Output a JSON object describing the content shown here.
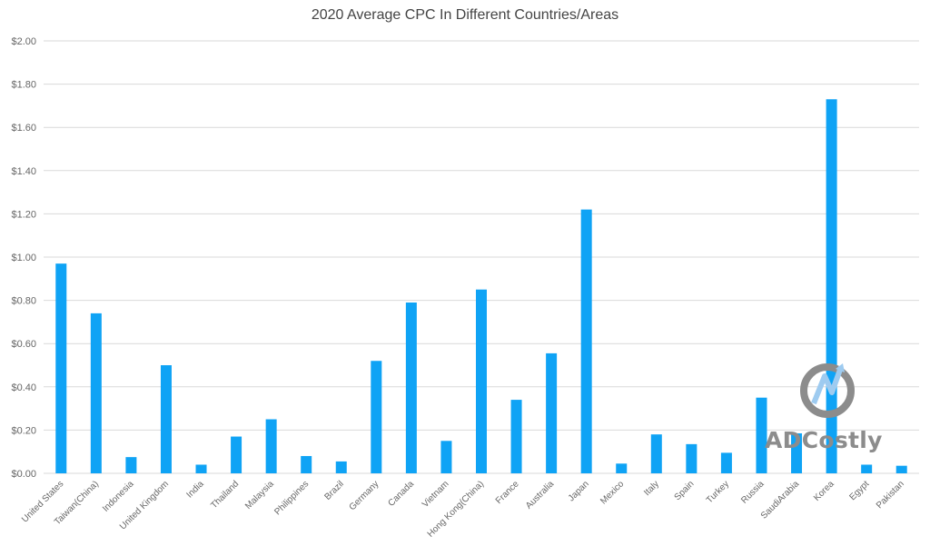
{
  "chart_data": {
    "type": "bar",
    "title": "2020 Average CPC In Different Countries/Areas",
    "xlabel": "",
    "ylabel": "",
    "ylim": [
      0,
      2.0
    ],
    "yticks": [
      "$0.00",
      "$0.20",
      "$0.40",
      "$0.60",
      "$0.80",
      "$1.00",
      "$1.20",
      "$1.40",
      "$1.60",
      "$1.80",
      "$2.00"
    ],
    "grid": true,
    "bar_color": "#0fa3f5",
    "categories": [
      "United States",
      "Taiwan(China)",
      "Indonesia",
      "United Kingdom",
      "India",
      "Thailand",
      "Malaysia",
      "Philippines",
      "Brazil",
      "Germany",
      "Canada",
      "Vietnam",
      "Hong Kong(China)",
      "France",
      "Australia",
      "Japan",
      "Mexico",
      "Italy",
      "Spain",
      "Turkey",
      "Russia",
      "SaudiArabia",
      "Korea",
      "Egypt",
      "Pakistan"
    ],
    "values": [
      0.97,
      0.74,
      0.075,
      0.5,
      0.04,
      0.17,
      0.25,
      0.08,
      0.055,
      0.52,
      0.79,
      0.15,
      0.85,
      0.34,
      0.555,
      1.22,
      0.045,
      0.18,
      0.135,
      0.095,
      0.35,
      0.185,
      1.73,
      0.04,
      0.035
    ]
  },
  "watermark": {
    "text": "ADCostly",
    "icon": "adcostly-logo-icon",
    "color": "#8c8c8c"
  }
}
